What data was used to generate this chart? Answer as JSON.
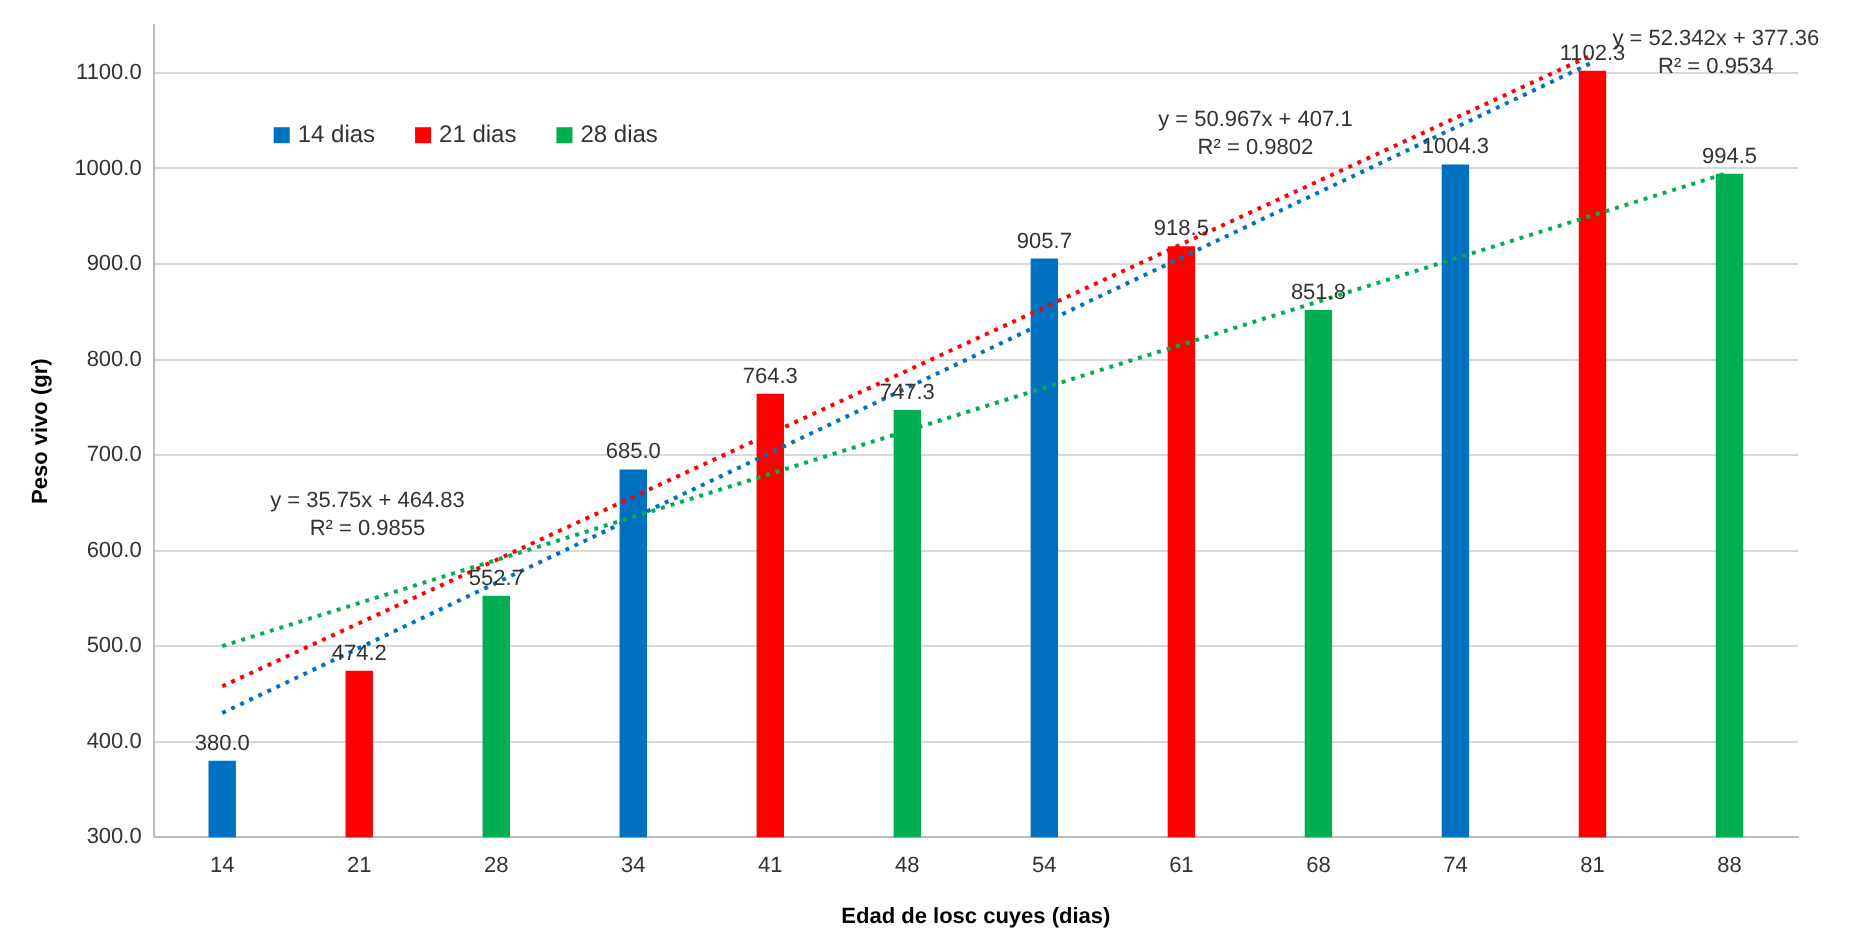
{
  "chart_data": {
    "type": "bar",
    "xlabel": "Edad de losc cuyes (dias)",
    "ylabel": "Peso vivo (gr)",
    "categories": [
      "14",
      "21",
      "28",
      "34",
      "41",
      "48",
      "54",
      "61",
      "68",
      "74",
      "81",
      "88"
    ],
    "ylim": [
      300,
      1150
    ],
    "yticks": [
      {
        "value": 300,
        "label": "300.0"
      },
      {
        "value": 400,
        "label": "400.0"
      },
      {
        "value": 500,
        "label": "500.0"
      },
      {
        "value": 600,
        "label": "600.0"
      },
      {
        "value": 700,
        "label": "700.0"
      },
      {
        "value": 800,
        "label": "800.0"
      },
      {
        "value": 900,
        "label": "900.0"
      },
      {
        "value": 1000,
        "label": "1000.0"
      },
      {
        "value": 1100,
        "label": "1100.0"
      }
    ],
    "grid": "y",
    "legend": "top left",
    "series": [
      {
        "name": "14 dias",
        "color": "#0070c0",
        "values": [
          380.0,
          null,
          null,
          685.0,
          null,
          null,
          905.7,
          null,
          null,
          1004.3,
          null,
          null
        ],
        "value_labels": [
          "380.0",
          null,
          null,
          "685.0",
          null,
          null,
          "905.7",
          null,
          null,
          "1004.3",
          null,
          null
        ]
      },
      {
        "name": "21 dias",
        "color": "#ff0000",
        "values": [
          null,
          474.2,
          null,
          null,
          764.3,
          null,
          null,
          918.5,
          null,
          null,
          1102.3,
          null
        ],
        "value_labels": [
          null,
          "474.2",
          null,
          null,
          "764.3",
          null,
          null,
          "918.5",
          null,
          null,
          "1102.3",
          null
        ]
      },
      {
        "name": "28 dias",
        "color": "#00b050",
        "values": [
          null,
          null,
          552.7,
          null,
          null,
          747.3,
          null,
          null,
          851.8,
          null,
          null,
          994.5
        ],
        "value_labels": [
          null,
          null,
          "552.7",
          null,
          null,
          "747.3",
          null,
          null,
          "851.8",
          null,
          null,
          "994.5"
        ]
      },
      {
        "type": "line",
        "color": "#0070c0",
        "line_style": "dotted",
        "x": [
          "14",
          "81"
        ],
        "values": [
          430,
          1111
        ]
      },
      {
        "type": "line",
        "color": "#ff0000",
        "line_style": "dotted",
        "x": [
          "14",
          "81"
        ],
        "values": [
          458,
          1119
        ]
      },
      {
        "type": "line",
        "color": "#00b050",
        "line_style": "dotted",
        "x": [
          "14",
          "88"
        ],
        "values": [
          500,
          996
        ]
      }
    ],
    "annotations": [
      "y = 35.75x + 464.83\nR² = 0.9855",
      "y = 50.967x + 407.1\nR² = 0.9802",
      "y = 52.342x + 377.36\nR² = 0.9534"
    ]
  }
}
